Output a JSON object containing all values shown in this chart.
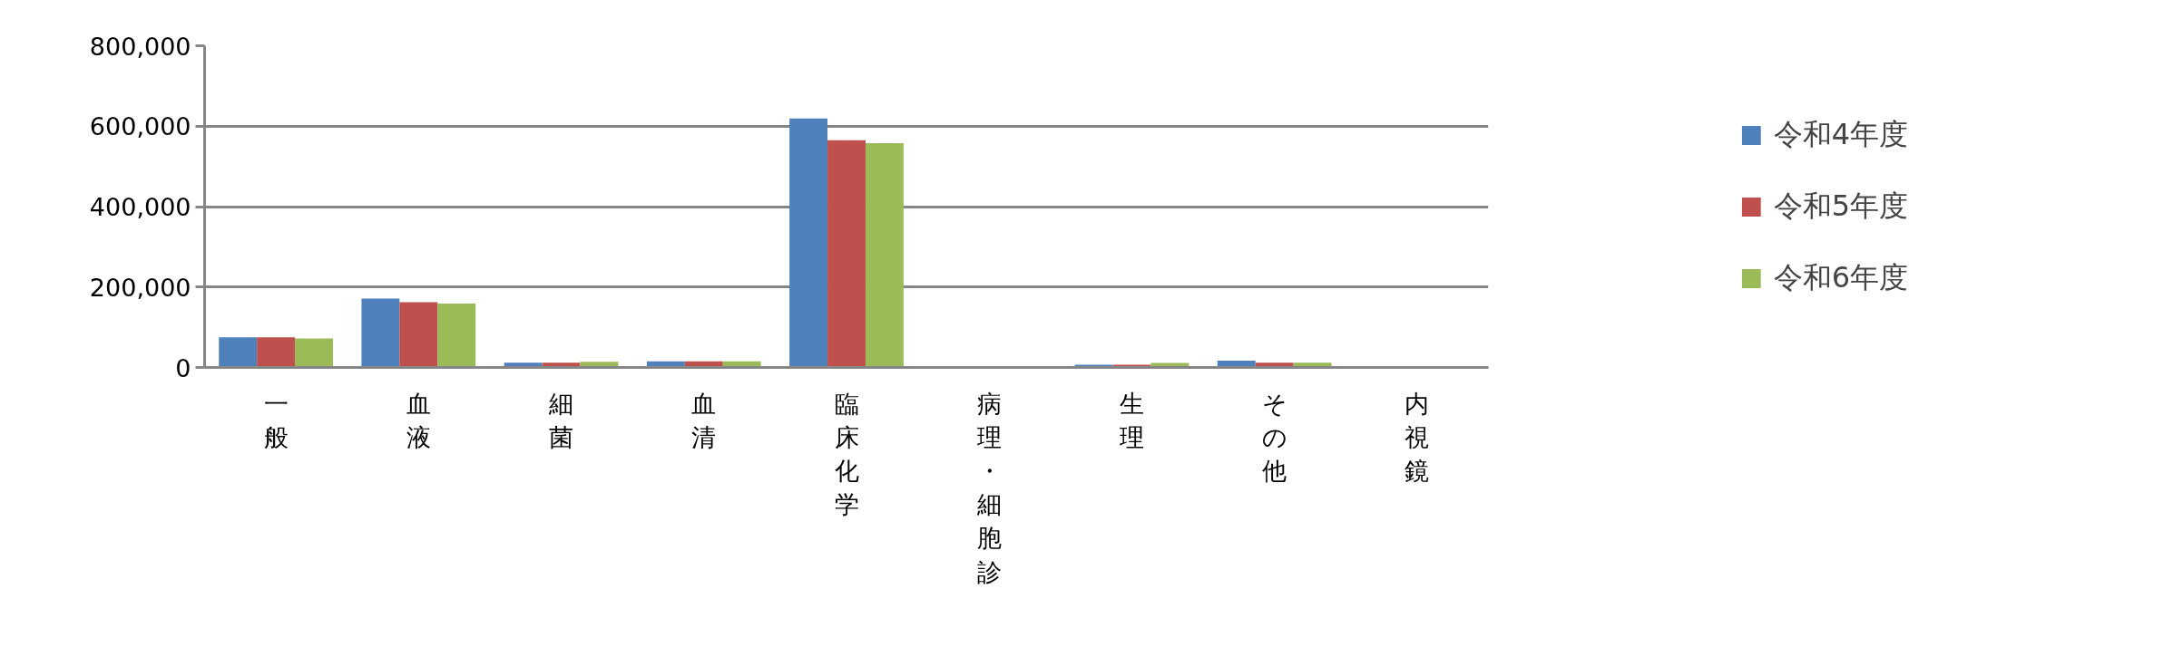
{
  "chart_data": {
    "type": "bar",
    "categories": [
      "一般",
      "血液",
      "細菌",
      "血清",
      "臨床化学",
      "病理・細胞診",
      "生理",
      "その他",
      "内視鏡"
    ],
    "series": [
      {
        "name": "令和4年度",
        "color": "#4f81bd",
        "values": [
          75000,
          171000,
          12000,
          15000,
          619000,
          null,
          7000,
          17000,
          null
        ]
      },
      {
        "name": "令和5年度",
        "color": "#c0504d",
        "values": [
          75000,
          162000,
          12000,
          15000,
          565000,
          null,
          7000,
          12000,
          null
        ]
      },
      {
        "name": "令和6年度",
        "color": "#9bbb59",
        "values": [
          72000,
          159000,
          14000,
          15000,
          558000,
          null,
          11000,
          12000,
          null
        ]
      }
    ],
    "ylim": [
      0,
      800000
    ],
    "yticks": [
      {
        "value": 0,
        "label": "0"
      },
      {
        "value": 200000,
        "label": "200,000"
      },
      {
        "value": 400000,
        "label": "400,000"
      },
      {
        "value": 600000,
        "label": "600,000"
      },
      {
        "value": 800000,
        "label": "800,000"
      }
    ],
    "grid": "y",
    "legend": "right"
  }
}
